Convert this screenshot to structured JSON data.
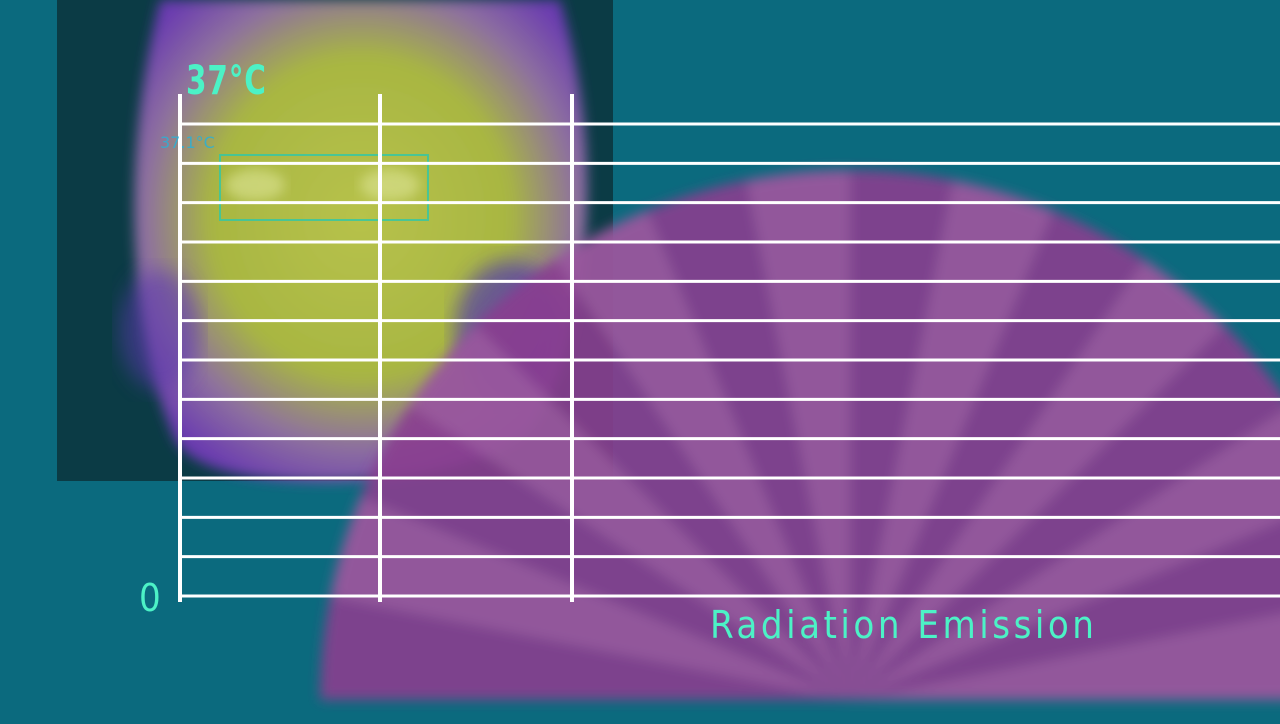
{
  "diagram": {
    "top_temperature_label": "37°C",
    "zero_label": "0",
    "axis_title": "Radiation Emission",
    "thermal_reading": "37.1°C",
    "colors": {
      "background": "#0b6a7e",
      "label_accent": "#4cf2c6",
      "grid_lines": "#ffffff",
      "emission_fan": "#8a3f8f",
      "thermal_warm": "#aab845",
      "thermal_cool": "#5a2aa8"
    },
    "thermal_image_subject": "face-thermal-scan",
    "grid": {
      "horizontal_lines": 13,
      "vertical_lines": 3
    }
  }
}
